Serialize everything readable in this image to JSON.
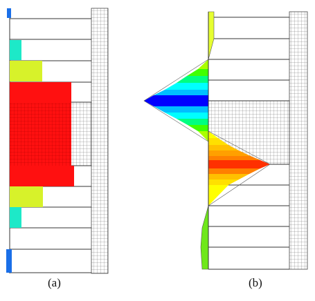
{
  "figure": {
    "panel_a_caption": "(a)",
    "panel_b_caption": "(b)"
  },
  "colors": {
    "background": "#ffffff",
    "line": "#333333",
    "mesh": "#555555",
    "blue": "#1a6fe8",
    "cyan": "#1de9c8",
    "yellow_green": "#d7f22a",
    "red": "#ff1010"
  },
  "contour_colormap": [
    "#0000ff",
    "#00bfff",
    "#00ffff",
    "#00ff80",
    "#40ff00",
    "#aaff00",
    "#ffff00",
    "#ffc000",
    "#ff8000",
    "#ff3000"
  ],
  "panels": [
    {
      "id": "a",
      "description_kind": "bar-distribution"
    },
    {
      "id": "b",
      "description_kind": "contour-distribution"
    }
  ]
}
